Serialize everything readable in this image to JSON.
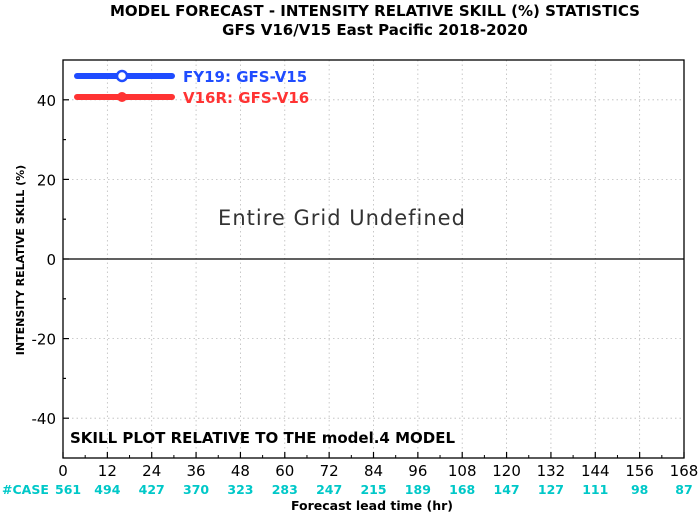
{
  "chart_data": {
    "type": "line",
    "title": "MODEL FORECAST - INTENSITY RELATIVE SKILL (%) STATISTICS",
    "subtitle": "GFS V16/V15 East Pacific 2018-2020",
    "xlabel": "Forecast lead time (hr)",
    "ylabel": "INTENSITY RELATIVE SKILL (%)",
    "xlim": [
      0,
      168
    ],
    "ylim": [
      -50,
      50
    ],
    "x_ticks": [
      0,
      12,
      24,
      36,
      48,
      60,
      72,
      84,
      96,
      108,
      120,
      132,
      144,
      156,
      168
    ],
    "y_ticks": [
      -40,
      -20,
      0,
      20,
      40
    ],
    "grid": true,
    "legend_position": "top-left",
    "series": [
      {
        "name": "FY19: GFS-V15",
        "color": "#1f4cff",
        "x": [],
        "values": []
      },
      {
        "name": "V16R: GFS-V16",
        "color": "#ff3333",
        "x": [],
        "values": []
      }
    ],
    "message": "Entire Grid Undefined",
    "annotation": "SKILL PLOT RELATIVE TO THE model.4 MODEL",
    "case_label": "#CASE",
    "case_color": "#00c8c8",
    "case_counts": [
      561,
      494,
      427,
      370,
      323,
      283,
      247,
      215,
      189,
      168,
      147,
      127,
      111,
      98,
      87
    ]
  }
}
